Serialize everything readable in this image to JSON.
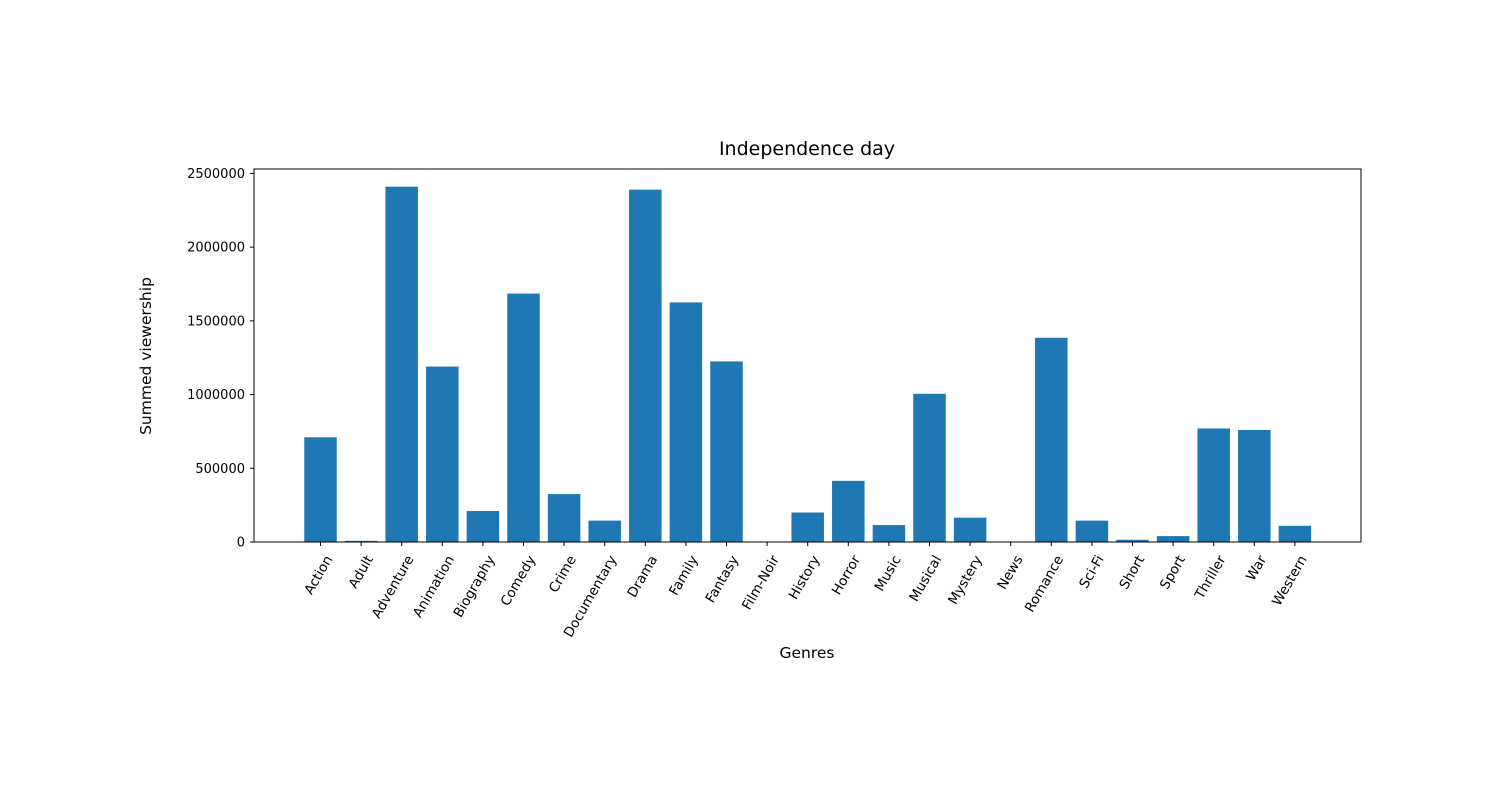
{
  "chart_data": {
    "type": "bar",
    "title": "Independence day",
    "xlabel": "Genres",
    "ylabel": "Summed viewership",
    "ylim": [
      0,
      2530000
    ],
    "yticks": [
      0,
      500000,
      1000000,
      1500000,
      2000000,
      2500000
    ],
    "ytick_labels": [
      "0",
      "500000",
      "1000000",
      "1500000",
      "2000000",
      "2500000"
    ],
    "categories": [
      "Action",
      "Adult",
      "Adventure",
      "Animation",
      "Biography",
      "Comedy",
      "Crime",
      "Documentary",
      "Drama",
      "Family",
      "Fantasy",
      "Film-Noir",
      "History",
      "Horror",
      "Music",
      "Musical",
      "Mystery",
      "News",
      "Romance",
      "Sci-Fi",
      "Short",
      "Sport",
      "Thriller",
      "War",
      "Western"
    ],
    "values": [
      710000,
      8000,
      2410000,
      1190000,
      210000,
      1685000,
      325000,
      145000,
      2390000,
      1625000,
      1225000,
      0,
      200000,
      415000,
      115000,
      1005000,
      165000,
      0,
      1385000,
      145000,
      15000,
      40000,
      770000,
      760000,
      110000
    ],
    "bar_color": "#1f77b4",
    "grid": false,
    "legend": "none"
  }
}
